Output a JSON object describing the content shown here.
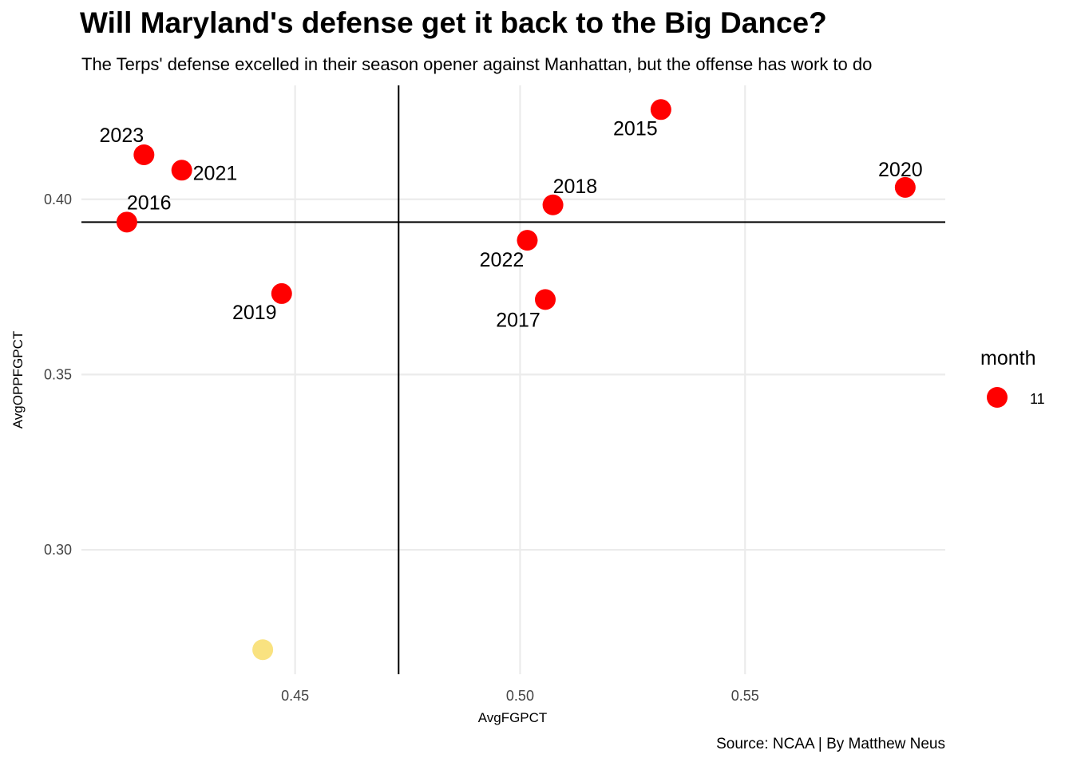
{
  "title": "Will Maryland's defense get it back to the Big Dance?",
  "subtitle": "The Terps' defense excelled in their season opener against Manhattan, but the offense has work to do",
  "caption": "Source: NCAA | By Matthew Neus",
  "colors": {
    "point": "#ff0000",
    "highlight": "#f7d54a",
    "grid": "#ebebeb",
    "refline": "#000000"
  },
  "chart_data": {
    "type": "scatter",
    "xlabel": "AvgFGPCT",
    "ylabel": "AvgOPPFGPCT",
    "xlim": [
      0.4025,
      0.5945
    ],
    "ylim": [
      0.2645,
      0.4325
    ],
    "xticks": [
      0.45,
      0.5,
      0.55
    ],
    "yticks": [
      0.3,
      0.35,
      0.4
    ],
    "xtick_labels": [
      "0.45",
      "0.50",
      "0.55"
    ],
    "ytick_labels": [
      "0.30",
      "0.35",
      "0.40"
    ],
    "grid": true,
    "vline_x": 0.473,
    "hline_y": 0.3935,
    "legend": {
      "title": "month",
      "placement": "right",
      "entries": [
        {
          "label": "11"
        }
      ]
    },
    "series": [
      {
        "name": "11",
        "points": [
          {
            "label": "2023",
            "x": 0.4164,
            "y": 0.4127
          },
          {
            "label": "2021",
            "x": 0.4248,
            "y": 0.4083
          },
          {
            "label": "2016",
            "x": 0.4126,
            "y": 0.3935
          },
          {
            "label": "2019",
            "x": 0.447,
            "y": 0.3731
          },
          {
            "label": "2015",
            "x": 0.5313,
            "y": 0.4256
          },
          {
            "label": "2018",
            "x": 0.5073,
            "y": 0.3984
          },
          {
            "label": "2020",
            "x": 0.5856,
            "y": 0.4034
          },
          {
            "label": "2022",
            "x": 0.5016,
            "y": 0.3883
          },
          {
            "label": "2017",
            "x": 0.5056,
            "y": 0.3714
          }
        ]
      }
    ],
    "highlight_point": {
      "x": 0.4428,
      "y": 0.2715
    }
  }
}
